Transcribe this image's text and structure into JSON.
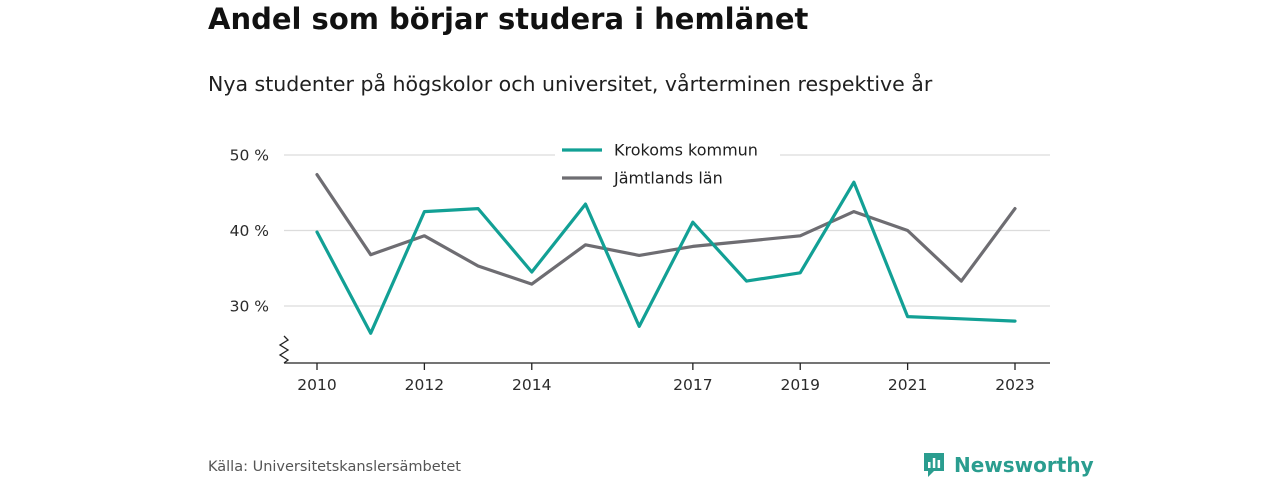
{
  "title": "Andel som börjar studera i hemlänet",
  "subtitle": "Nya studenter på högskolor och universitet, vårterminen respektive år",
  "source": "Källa: Universitetskanslersämbetet",
  "brand": {
    "name": "Newsworthy",
    "icon": "newsworthy-logo-icon",
    "color": "#2a9d8f"
  },
  "chart_data": {
    "type": "line",
    "ylim": [
      22,
      50
    ],
    "xlim": [
      2009.8,
      2023.3
    ],
    "y_ticks": [
      {
        "value": 30,
        "label": "30 %"
      },
      {
        "value": 40,
        "label": "40 %"
      },
      {
        "value": 50,
        "label": "50 %"
      }
    ],
    "x_ticks": [
      {
        "value": 2010,
        "label": "2010"
      },
      {
        "value": 2012,
        "label": "2012"
      },
      {
        "value": 2014,
        "label": "2014"
      },
      {
        "value": 2017,
        "label": "2017"
      },
      {
        "value": 2019,
        "label": "2019"
      },
      {
        "value": 2021,
        "label": "2021"
      },
      {
        "value": 2023,
        "label": "2023"
      }
    ],
    "grid": true,
    "axis_break": true,
    "legend_position": "top-center",
    "x": [
      2010,
      2011,
      2012,
      2013,
      2014,
      2015,
      2016,
      2017,
      2018,
      2019,
      2020,
      2021,
      2022,
      2023
    ],
    "series": [
      {
        "name": "Krokoms kommun",
        "color": "#12a095",
        "values": [
          39.8,
          26.4,
          42.5,
          42.9,
          34.5,
          43.5,
          27.3,
          41.1,
          33.3,
          34.4,
          46.4,
          28.6,
          28.3,
          28.0
        ]
      },
      {
        "name": "Jämtlands län",
        "color": "#6e6d72",
        "values": [
          47.4,
          36.8,
          39.3,
          35.3,
          32.9,
          38.1,
          36.7,
          37.9,
          38.6,
          39.3,
          42.5,
          40.0,
          33.3,
          42.9
        ]
      }
    ]
  }
}
